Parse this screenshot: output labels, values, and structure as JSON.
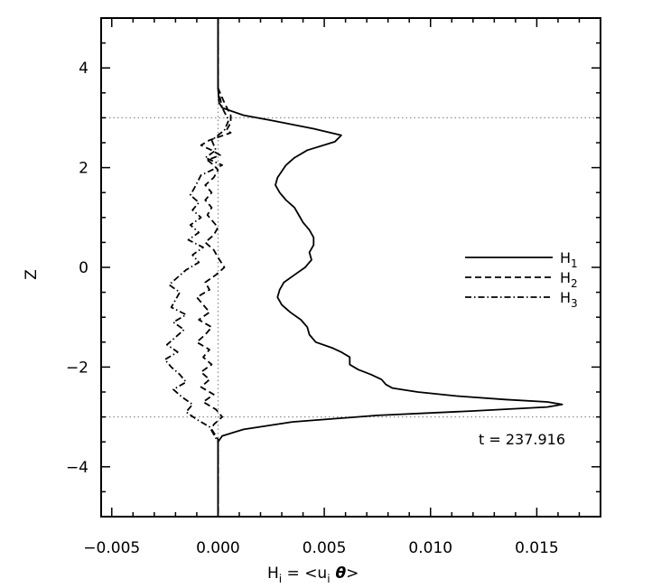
{
  "chart_data": {
    "type": "line",
    "xlabel": {
      "main": "H",
      "main_sub": "i",
      "eq": " = <u",
      "sub2": "i",
      "theta": " θ",
      "close": ">"
    },
    "ylabel": "Z",
    "xlim": [
      -0.0055,
      0.018
    ],
    "ylim": [
      -5,
      5
    ],
    "xticks": [
      -0.005,
      0.0,
      0.005,
      0.01,
      0.015
    ],
    "xtick_labels": [
      "−0.005",
      "0.000",
      "0.005",
      "0.010",
      "0.015"
    ],
    "yticks": [
      -4,
      -2,
      0,
      2,
      4
    ],
    "ytick_labels": [
      "−4",
      "−2",
      "0",
      "2",
      "4"
    ],
    "reference_lines": {
      "horizontal": [
        3.0,
        -3.0
      ],
      "vertical": [
        0.0
      ]
    },
    "legend": {
      "placement": "right",
      "entries": [
        {
          "name": "H",
          "sub": "1",
          "style": "solid"
        },
        {
          "name": "H",
          "sub": "2",
          "style": "dashed"
        },
        {
          "name": "H",
          "sub": "3",
          "style": "dashdot"
        }
      ]
    },
    "annotation": "t = 237.916",
    "series": [
      {
        "style": "solid",
        "points": [
          [
            0.0,
            5.0
          ],
          [
            0.0,
            4.0
          ],
          [
            0.0,
            3.6
          ],
          [
            5e-05,
            3.3
          ],
          [
            0.0002,
            3.2
          ],
          [
            0.0012,
            3.05
          ],
          [
            0.0025,
            2.95
          ],
          [
            0.0045,
            2.78
          ],
          [
            0.0058,
            2.65
          ],
          [
            0.0055,
            2.52
          ],
          [
            0.0042,
            2.35
          ],
          [
            0.0036,
            2.2
          ],
          [
            0.0032,
            2.05
          ],
          [
            0.0028,
            1.8
          ],
          [
            0.0027,
            1.65
          ],
          [
            0.0029,
            1.5
          ],
          [
            0.0032,
            1.35
          ],
          [
            0.0036,
            1.2
          ],
          [
            0.0038,
            1.05
          ],
          [
            0.004,
            0.9
          ],
          [
            0.0043,
            0.75
          ],
          [
            0.0045,
            0.6
          ],
          [
            0.0045,
            0.45
          ],
          [
            0.0043,
            0.3
          ],
          [
            0.0044,
            0.15
          ],
          [
            0.0041,
            0.0
          ],
          [
            0.0036,
            -0.15
          ],
          [
            0.0031,
            -0.3
          ],
          [
            0.0029,
            -0.45
          ],
          [
            0.0028,
            -0.6
          ],
          [
            0.003,
            -0.75
          ],
          [
            0.0034,
            -0.9
          ],
          [
            0.0039,
            -1.05
          ],
          [
            0.0042,
            -1.2
          ],
          [
            0.0043,
            -1.35
          ],
          [
            0.0046,
            -1.5
          ],
          [
            0.0054,
            -1.62
          ],
          [
            0.0058,
            -1.7
          ],
          [
            0.0062,
            -1.8
          ],
          [
            0.0062,
            -1.95
          ],
          [
            0.0066,
            -2.05
          ],
          [
            0.0072,
            -2.15
          ],
          [
            0.0077,
            -2.25
          ],
          [
            0.0079,
            -2.35
          ],
          [
            0.0082,
            -2.42
          ],
          [
            0.0094,
            -2.5
          ],
          [
            0.0112,
            -2.58
          ],
          [
            0.0135,
            -2.65
          ],
          [
            0.0155,
            -2.7
          ],
          [
            0.0162,
            -2.75
          ],
          [
            0.0155,
            -2.8
          ],
          [
            0.012,
            -2.88
          ],
          [
            0.0075,
            -2.97
          ],
          [
            0.0035,
            -3.1
          ],
          [
            0.0012,
            -3.25
          ],
          [
            0.0002,
            -3.38
          ],
          [
            0.0,
            -3.5
          ],
          [
            0.0,
            -5.0
          ]
        ]
      },
      {
        "style": "dashed",
        "points": [
          [
            0.0,
            5.0
          ],
          [
            0.0,
            3.6
          ],
          [
            0.0003,
            3.3
          ],
          [
            0.0006,
            3.05
          ],
          [
            0.0006,
            2.9
          ],
          [
            0.0004,
            2.75
          ],
          [
            0.0006,
            2.7
          ],
          [
            -0.0004,
            2.55
          ],
          [
            -0.0008,
            2.45
          ],
          [
            -0.0003,
            2.35
          ],
          [
            0.0001,
            2.25
          ],
          [
            -0.0005,
            2.15
          ],
          [
            -0.0002,
            2.05
          ],
          [
            0.0,
            1.95
          ],
          [
            -0.0002,
            1.8
          ],
          [
            -0.0006,
            1.65
          ],
          [
            -0.0003,
            1.5
          ],
          [
            -0.0006,
            1.35
          ],
          [
            -0.0003,
            1.2
          ],
          [
            -0.0005,
            1.05
          ],
          [
            -0.0002,
            0.9
          ],
          [
            0.0,
            0.8
          ],
          [
            -0.0002,
            0.65
          ],
          [
            -0.0006,
            0.5
          ],
          [
            -0.0002,
            0.35
          ],
          [
            0.0,
            0.2
          ],
          [
            0.0003,
            0.0
          ],
          [
            -0.0001,
            -0.15
          ],
          [
            -0.0006,
            -0.3
          ],
          [
            -0.0004,
            -0.45
          ],
          [
            -0.001,
            -0.6
          ],
          [
            -0.0007,
            -0.75
          ],
          [
            -0.0004,
            -0.9
          ],
          [
            -0.0009,
            -1.05
          ],
          [
            -0.0003,
            -1.2
          ],
          [
            -0.0006,
            -1.35
          ],
          [
            -0.001,
            -1.5
          ],
          [
            -0.0004,
            -1.65
          ],
          [
            -0.0007,
            -1.8
          ],
          [
            -0.0003,
            -1.95
          ],
          [
            -0.0008,
            -2.1
          ],
          [
            -0.0004,
            -2.25
          ],
          [
            -0.0008,
            -2.4
          ],
          [
            -0.0002,
            -2.55
          ],
          [
            -0.0007,
            -2.7
          ],
          [
            -0.0001,
            -2.85
          ],
          [
            0.0002,
            -3.0
          ],
          [
            -0.0002,
            -3.15
          ],
          [
            -0.0003,
            -3.25
          ],
          [
            0.0,
            -3.45
          ],
          [
            0.0,
            -5.0
          ]
        ]
      },
      {
        "style": "dashdot",
        "points": [
          [
            0.0,
            5.0
          ],
          [
            0.0,
            3.6
          ],
          [
            0.0002,
            3.2
          ],
          [
            0.0005,
            2.95
          ],
          [
            0.0003,
            2.75
          ],
          [
            -0.0003,
            2.55
          ],
          [
            -0.0001,
            2.35
          ],
          [
            -0.0006,
            2.2
          ],
          [
            0.0002,
            2.05
          ],
          [
            -0.0008,
            1.85
          ],
          [
            -0.0011,
            1.6
          ],
          [
            -0.0013,
            1.45
          ],
          [
            -0.0009,
            1.3
          ],
          [
            -0.0012,
            1.15
          ],
          [
            -0.0008,
            1.0
          ],
          [
            -0.0013,
            0.85
          ],
          [
            -0.0009,
            0.7
          ],
          [
            -0.0014,
            0.55
          ],
          [
            -0.0007,
            0.4
          ],
          [
            -0.0012,
            0.25
          ],
          [
            -0.0009,
            0.1
          ],
          [
            -0.0015,
            -0.05
          ],
          [
            -0.0019,
            -0.2
          ],
          [
            -0.0023,
            -0.35
          ],
          [
            -0.0018,
            -0.5
          ],
          [
            -0.002,
            -0.65
          ],
          [
            -0.0022,
            -0.8
          ],
          [
            -0.0015,
            -0.95
          ],
          [
            -0.0021,
            -1.1
          ],
          [
            -0.0016,
            -1.25
          ],
          [
            -0.002,
            -1.4
          ],
          [
            -0.0024,
            -1.55
          ],
          [
            -0.0019,
            -1.7
          ],
          [
            -0.0025,
            -1.85
          ],
          [
            -0.0022,
            -2.0
          ],
          [
            -0.0018,
            -2.15
          ],
          [
            -0.0015,
            -2.3
          ],
          [
            -0.0021,
            -2.45
          ],
          [
            -0.0017,
            -2.6
          ],
          [
            -0.0012,
            -2.75
          ],
          [
            -0.0015,
            -2.9
          ],
          [
            -0.001,
            -3.05
          ],
          [
            -0.0004,
            -3.2
          ],
          [
            -0.0002,
            -3.35
          ],
          [
            0.0,
            -3.5
          ],
          [
            0.0,
            -5.0
          ]
        ]
      }
    ]
  }
}
